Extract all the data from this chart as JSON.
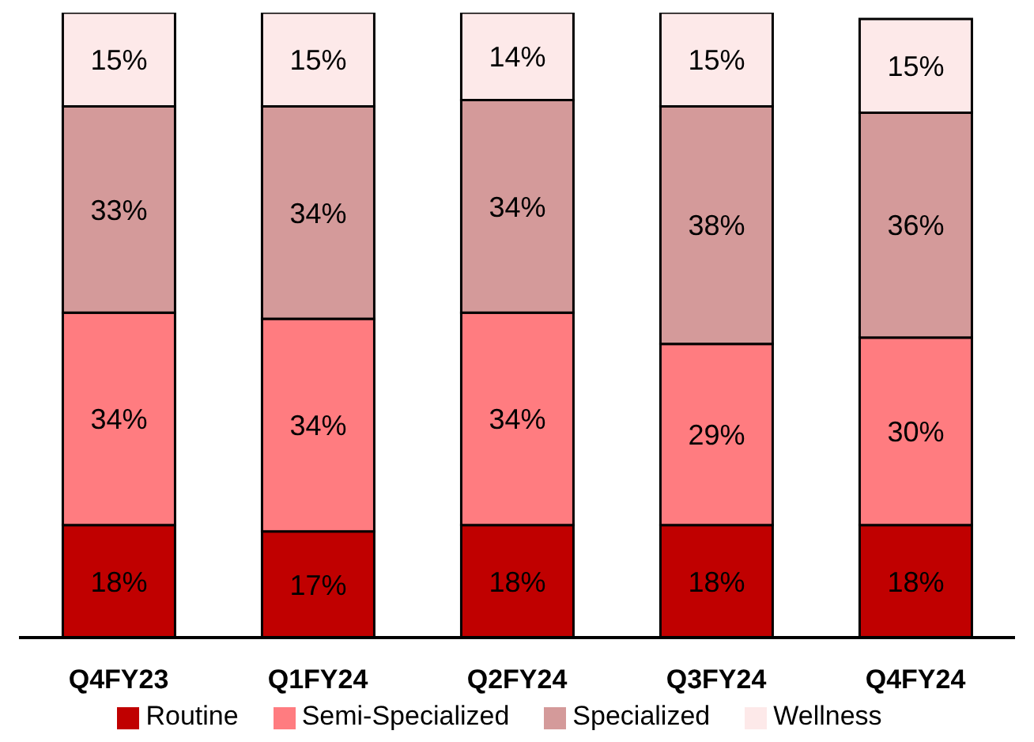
{
  "chart_data": {
    "type": "bar",
    "stacked": true,
    "categories": [
      "Q4FY23",
      "Q1FY24",
      "Q2FY24",
      "Q3FY24",
      "Q4FY24"
    ],
    "series": [
      {
        "name": "Routine",
        "color": "#c00000",
        "values": [
          18,
          17,
          18,
          18,
          18
        ],
        "value_labels": [
          "18%",
          "17%",
          "18%",
          "18%",
          "18%"
        ]
      },
      {
        "name": "Semi-Specialized",
        "color": "#ff7c80",
        "values": [
          34,
          34,
          34,
          29,
          30
        ],
        "value_labels": [
          "34%",
          "34%",
          "34%",
          "29%",
          "30%"
        ]
      },
      {
        "name": "Specialized",
        "color": "#d49a9a",
        "values": [
          33,
          34,
          34,
          38,
          36
        ],
        "value_labels": [
          "33%",
          "34%",
          "34%",
          "38%",
          "36%"
        ]
      },
      {
        "name": "Wellness",
        "color": "#fde9e9",
        "values": [
          15,
          15,
          14,
          15,
          15
        ],
        "value_labels": [
          "15%",
          "15%",
          "14%",
          "15%",
          "15%"
        ]
      }
    ],
    "legend": "bottom"
  }
}
